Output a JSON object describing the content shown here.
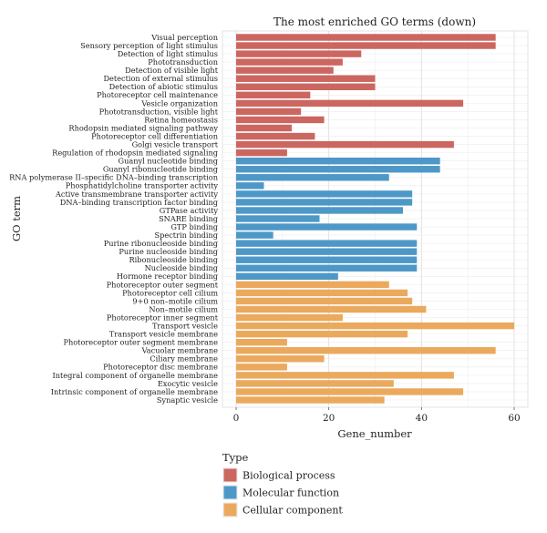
{
  "chart_data": {
    "type": "bar",
    "orientation": "horizontal",
    "title": "The most enriched GO terms (down)",
    "xlabel": "Gene_number",
    "ylabel": "GO term",
    "xlim": [
      0,
      63
    ],
    "xticks": [
      0,
      20,
      40,
      60
    ],
    "grid": true,
    "colors": {
      "Biological process": "#cc6660",
      "Molecular function": "#4e98c8",
      "Cellular component": "#eba95e"
    },
    "legend": {
      "title": "Type",
      "placement": "bottom-left",
      "entries": [
        "Biological process",
        "Molecular function",
        "Cellular component"
      ]
    },
    "categories": [
      "Visual perception",
      "Sensory perception of light stimulus",
      "Detection of light stimulus",
      "Phototransduction",
      "Detection of visible light",
      "Detection of external stimulus",
      "Detection of abiotic stimulus",
      "Photoreceptor cell maintenance",
      "Vesicle organization",
      "Phototransduction, visible light",
      "Retina homeostasis",
      "Rhodopsin mediated signaling pathway",
      "Photoreceptor cell differentiation",
      "Golgi vesicle transport",
      "Regulation of rhodopsin mediated signaling",
      "Guanyl nucleotide binding",
      "Guanyl ribonucleotide binding",
      "RNA polymerase II–specific DNA–binding transcription",
      "Phosphatidylcholine transporter activity",
      "Active transmembrane transporter activity",
      "DNA–binding transcription factor binding",
      "GTPase activity",
      "SNARE binding",
      "GTP binding",
      "Spectrin binding",
      "Purine ribonucleoside binding",
      "Purine nucleoside binding",
      "Ribonucleoside binding",
      "Nucleoside binding",
      "Hormone receptor binding",
      "Photoreceptor outer segment",
      "Photoreceptor cell cilium",
      "9+0 non–motile cilium",
      "Non–motile cilium",
      "Photoreceptor inner segment",
      "Transport vesicle",
      "Transport vesicle membrane",
      "Photoreceptor outer segment membrane",
      "Vacuolar membrane",
      "Ciliary membrane",
      "Photoreceptor disc membrane",
      "Integral component of organelle membrane",
      "Exocytic vesicle",
      "Intrinsic component of organelle membrane",
      "Synaptic vesicle"
    ],
    "values": [
      56,
      56,
      27,
      23,
      21,
      30,
      30,
      16,
      49,
      14,
      19,
      12,
      17,
      47,
      11,
      44,
      44,
      33,
      6,
      38,
      38,
      36,
      18,
      39,
      8,
      39,
      39,
      39,
      39,
      22,
      33,
      37,
      38,
      41,
      23,
      60,
      37,
      11,
      56,
      19,
      11,
      47,
      34,
      49,
      32
    ],
    "types": [
      "Biological process",
      "Biological process",
      "Biological process",
      "Biological process",
      "Biological process",
      "Biological process",
      "Biological process",
      "Biological process",
      "Biological process",
      "Biological process",
      "Biological process",
      "Biological process",
      "Biological process",
      "Biological process",
      "Biological process",
      "Molecular function",
      "Molecular function",
      "Molecular function",
      "Molecular function",
      "Molecular function",
      "Molecular function",
      "Molecular function",
      "Molecular function",
      "Molecular function",
      "Molecular function",
      "Molecular function",
      "Molecular function",
      "Molecular function",
      "Molecular function",
      "Molecular function",
      "Cellular component",
      "Cellular component",
      "Cellular component",
      "Cellular component",
      "Cellular component",
      "Cellular component",
      "Cellular component",
      "Cellular component",
      "Cellular component",
      "Cellular component",
      "Cellular component",
      "Cellular component",
      "Cellular component",
      "Cellular component",
      "Cellular component"
    ]
  }
}
